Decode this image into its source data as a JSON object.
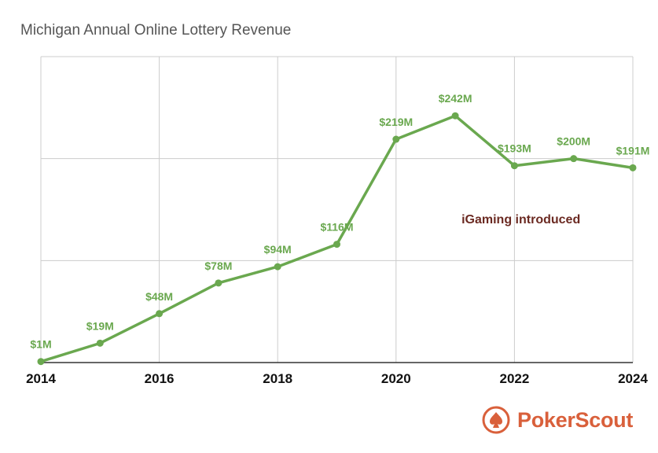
{
  "title": "Michigan Annual Online Lottery Revenue",
  "chart_data": {
    "type": "line",
    "title": "Michigan Annual Online Lottery Revenue",
    "xlabel": "",
    "ylabel": "",
    "x": [
      2014,
      2015,
      2016,
      2017,
      2018,
      2019,
      2020,
      2021,
      2022,
      2023,
      2024
    ],
    "values": [
      1,
      19,
      48,
      78,
      94,
      116,
      219,
      242,
      193,
      200,
      191
    ],
    "data_labels": [
      "$1M",
      "$19M",
      "$48M",
      "$78M",
      "$94M",
      "$116M",
      "$219M",
      "$242M",
      "$193M",
      "$200M",
      "$191M"
    ],
    "x_ticks": [
      "2014",
      "2016",
      "2018",
      "2020",
      "2022",
      "2024"
    ],
    "xlim": [
      2014,
      2024
    ],
    "ylim": [
      0,
      300
    ],
    "y_gridlines": [
      100,
      200,
      300
    ],
    "grid": true,
    "line_color": "#6aa84f",
    "annotation": {
      "text": "iGaming introduced",
      "x": 2021,
      "color": "#6b2a22"
    }
  },
  "brand": {
    "name": "PokerScout",
    "icon": "spade-logo-icon",
    "color": "#d9603b"
  }
}
